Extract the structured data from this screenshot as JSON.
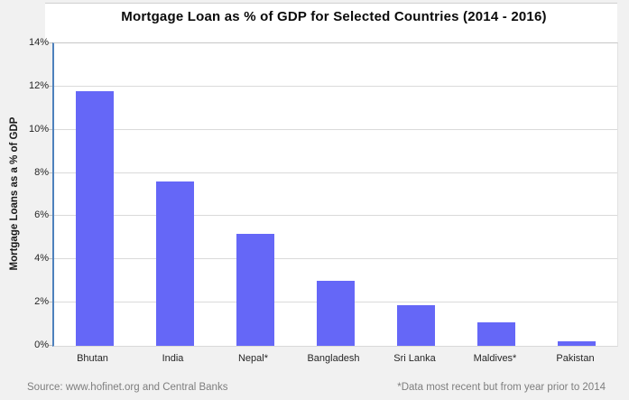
{
  "chart_data": {
    "type": "bar",
    "title": "Mortgage Loan as % of GDP for Selected Countries (2014 - 2016)",
    "categories": [
      "Bhutan",
      "India",
      "Nepal*",
      "Bangladesh",
      "Sri Lanka",
      "Maldives*",
      "Pakistan"
    ],
    "values": [
      11.8,
      7.6,
      5.2,
      3.0,
      1.9,
      1.1,
      0.2
    ],
    "xlabel": "",
    "ylabel": "Mortgage Loans as a % of GDP",
    "ylim": [
      0,
      14
    ],
    "ytick_step": 2,
    "ytick_labels": [
      "0%",
      "2%",
      "4%",
      "6%",
      "8%",
      "10%",
      "12%",
      "14%"
    ],
    "grid": true,
    "legend": false,
    "bar_color": "#6567f7",
    "axis_line_color": "#4e81bd",
    "gridline_color": "#dadada",
    "plot_bg": "#ffffff",
    "page_bg": "#f1f1f1"
  },
  "footer": {
    "source": "Source: www.hofinet.org and Central Banks",
    "note": "*Data most recent but from year prior to 2014"
  }
}
